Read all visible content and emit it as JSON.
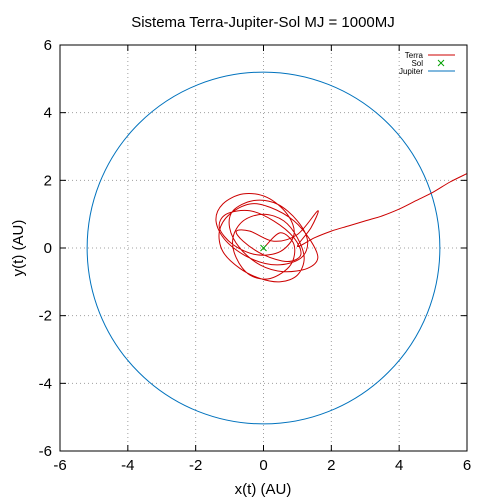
{
  "chart_data": {
    "type": "line",
    "title": "Sistema Terra-Jupiter-Sol MJ = 1000MJ",
    "xlabel": "x(t) (AU)",
    "ylabel": "y(t) (AU)",
    "xlim": [
      -6,
      6
    ],
    "ylim": [
      -6,
      6
    ],
    "xticks": [
      -6,
      -4,
      -2,
      0,
      2,
      4,
      6
    ],
    "yticks": [
      -6,
      -4,
      -2,
      0,
      2,
      4,
      6
    ],
    "xtick_labels": [
      "-6",
      "-4",
      "-2",
      "0",
      "2",
      "4",
      "6"
    ],
    "ytick_labels": [
      "-6",
      "-4",
      "-2",
      "0",
      "2",
      "4",
      "6"
    ],
    "grid": true,
    "legend_position": "top-right",
    "series": [
      {
        "name": "Terra",
        "color": "#cc0000",
        "style": "line",
        "x": [
          0.05,
          0.5,
          0.9,
          0.8,
          0.2,
          -0.4,
          -0.8,
          -0.9,
          -0.6,
          0.0,
          0.6,
          1.0,
          1.2,
          1.0,
          0.5,
          -0.1,
          -0.7,
          -1.2,
          -1.3,
          -1.0,
          -0.4,
          0.2,
          0.9,
          1.4,
          1.6,
          1.3,
          0.6,
          -0.1,
          -0.7,
          -1.0,
          -0.9,
          -0.3,
          0.4,
          1.0,
          1.3,
          1.1,
          0.4,
          -0.4,
          -1.1,
          -1.4,
          -1.2,
          -0.6,
          0.1,
          0.7,
          0.9,
          0.5,
          -0.2,
          -0.9,
          -1.3,
          -1.1,
          -0.4,
          0.3,
          0.9,
          1.1,
          0.7,
          0.0,
          -0.6,
          -0.8,
          -0.4,
          0.3,
          1.0,
          1.6,
          1.4,
          1.0,
          1.5,
          2.0,
          2.5,
          3.0,
          3.5,
          4.0,
          4.5,
          5.0,
          5.5,
          6.0
        ],
        "y": [
          0.05,
          0.45,
          0.1,
          -0.5,
          -0.9,
          -0.8,
          -0.3,
          0.3,
          0.8,
          1.0,
          0.8,
          0.3,
          -0.3,
          -0.8,
          -1.0,
          -0.9,
          -0.6,
          -0.1,
          0.5,
          1.0,
          1.3,
          1.2,
          0.8,
          0.2,
          -0.3,
          -0.6,
          -0.7,
          -0.5,
          0.0,
          0.6,
          1.1,
          1.4,
          1.3,
          0.8,
          0.2,
          -0.3,
          -0.5,
          -0.3,
          0.2,
          0.8,
          1.3,
          1.6,
          1.5,
          1.0,
          0.4,
          -0.1,
          -0.2,
          0.1,
          0.6,
          1.0,
          1.1,
          0.8,
          0.3,
          -0.2,
          -0.4,
          -0.2,
          0.2,
          0.5,
          0.5,
          0.2,
          0.4,
          1.1,
          0.6,
          0.05,
          0.3,
          0.5,
          0.65,
          0.8,
          0.95,
          1.15,
          1.4,
          1.65,
          1.95,
          2.2
        ]
      },
      {
        "name": "Sol",
        "color": "#00a000",
        "style": "points",
        "x": [
          0.0
        ],
        "y": [
          0.0
        ]
      },
      {
        "name": "Jupiter",
        "color": "#0072bd",
        "style": "circle",
        "center": [
          0.0,
          0.0
        ],
        "radius": 5.2
      }
    ]
  }
}
